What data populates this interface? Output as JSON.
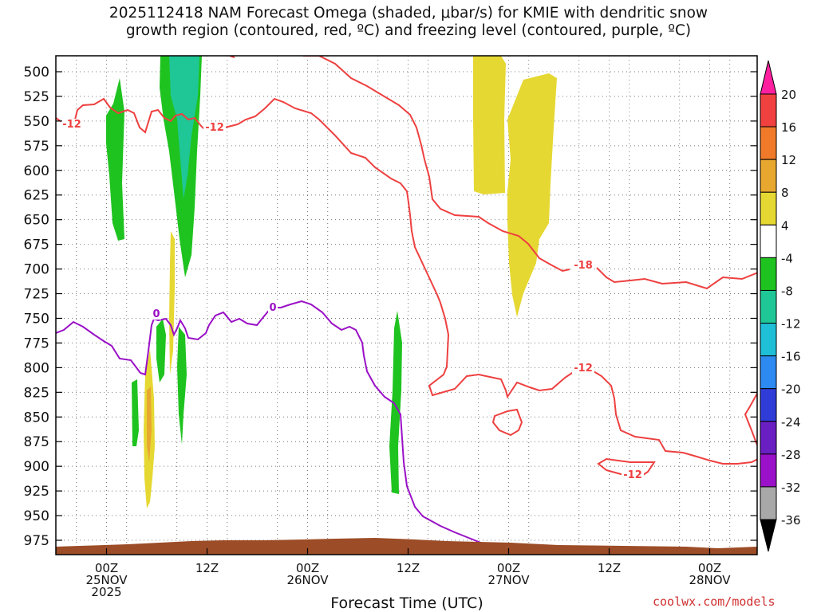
{
  "title": "2025112418 NAM Forecast Omega (shaded, μbar/s) for KMIE with dendritic snow\ngrowth region (contoured, red, ºC) and freezing level (contoured, purple, ºC)",
  "credit": "coolwx.com/models",
  "chart_data": {
    "type": "time-height",
    "xlabel": "Forecast Time (UTC)",
    "ylabel": "",
    "xlim_hours": [
      -5,
      65
    ],
    "ylim": [
      1000,
      480
    ],
    "y_ticks": [
      500,
      525,
      550,
      575,
      600,
      625,
      650,
      675,
      700,
      725,
      750,
      775,
      800,
      825,
      850,
      875,
      900,
      925,
      950,
      975
    ],
    "x_ticks": [
      {
        "hour": 0,
        "label": [
          "00Z",
          "25NOV",
          "2025"
        ]
      },
      {
        "hour": 10,
        "label": [
          "12Z"
        ]
      },
      {
        "hour": 20,
        "label": [
          "00Z",
          "26NOV"
        ]
      },
      {
        "hour": 30,
        "label": [
          "12Z"
        ]
      },
      {
        "hour": 40,
        "label": [
          "00Z",
          "27NOV"
        ]
      },
      {
        "hour": 50,
        "label": [
          "12Z"
        ]
      },
      {
        "hour": 60,
        "label": [
          "00Z",
          "28NOV"
        ]
      }
    ],
    "grid": "dotted",
    "colorbar": {
      "labels": [
        "20",
        "16",
        "12",
        "8",
        "4",
        "-4",
        "-8",
        "-12",
        "-16",
        "-20",
        "-24",
        "-28",
        "-32",
        "-36"
      ],
      "colors": [
        "#ff1f9f",
        "#f04040",
        "#f07a2a",
        "#e8a830",
        "#e6d832",
        "#ffffff",
        "#1fc31f",
        "#1fc796",
        "#1fbfd8",
        "#2c8af0",
        "#2f3cd8",
        "#6a1fc3",
        "#9b11c9",
        "#a8a8a8",
        "#000000"
      ]
    },
    "contour_colors": {
      "dgz": "#ee4040",
      "freezing": "#9a10c6"
    },
    "contour_labels": {
      "dgz_warm": "-12",
      "dgz_cold": "-18",
      "freezing": "0"
    },
    "terrain_color": "#9c4c27",
    "terrain_top_mb": 982
  }
}
